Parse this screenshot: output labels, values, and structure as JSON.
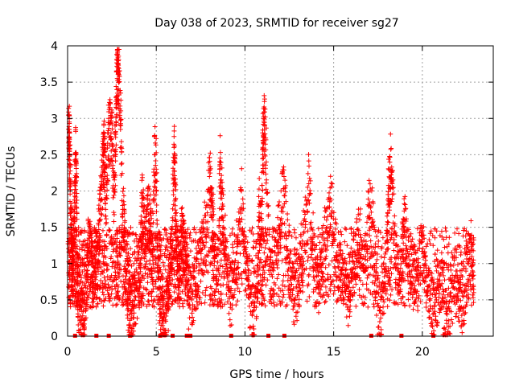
{
  "chart_data": {
    "type": "scatter",
    "title": "Day 038 of 2023, SRMTID for receiver sg27",
    "xlabel": "GPS time / hours",
    "ylabel": "SRMTID / TECUs",
    "xlim": [
      0,
      24
    ],
    "ylim": [
      0,
      4
    ],
    "xticks": [
      0,
      5,
      10,
      15,
      20
    ],
    "yticks": [
      0,
      0.5,
      1,
      1.5,
      2,
      2.5,
      3,
      3.5,
      4
    ],
    "xtick_labels": [
      "0",
      "5",
      "10",
      "15",
      "20"
    ],
    "ytick_labels": [
      "0",
      "0.5",
      "1",
      "1.5",
      "2",
      "2.5",
      "3",
      "3.5",
      "4"
    ],
    "grid": true,
    "marker": "+",
    "color": "#ff0000",
    "data_span_hours": [
      0.0,
      22.9
    ],
    "typical_range": [
      0.3,
      1.5
    ],
    "series": [
      {
        "name": "SRMTID",
        "points": [
          [
            0.05,
            2.85
          ],
          [
            0.1,
            2.8
          ],
          [
            0.1,
            2.55
          ],
          [
            0.15,
            2.1
          ],
          [
            0.2,
            1.45
          ],
          [
            0.25,
            1.2
          ],
          [
            0.3,
            0.9
          ],
          [
            0.35,
            1.3
          ],
          [
            0.4,
            1.75
          ],
          [
            0.45,
            2.5
          ],
          [
            0.5,
            2.2
          ],
          [
            0.55,
            0.7
          ],
          [
            0.6,
            0.55
          ],
          [
            0.7,
            0.4
          ],
          [
            0.8,
            0.25
          ],
          [
            0.9,
            0.15
          ],
          [
            1.0,
            0.6
          ],
          [
            1.1,
            0.9
          ],
          [
            1.2,
            1.35
          ],
          [
            1.3,
            1.1
          ],
          [
            1.4,
            0.85
          ],
          [
            1.5,
            0.7
          ],
          [
            1.6,
            1.0
          ],
          [
            1.7,
            1.2
          ],
          [
            1.8,
            1.6
          ],
          [
            1.9,
            2.05
          ],
          [
            2.0,
            2.4
          ],
          [
            2.05,
            2.6
          ],
          [
            2.1,
            2.2
          ],
          [
            2.2,
            1.9
          ],
          [
            2.3,
            2.8
          ],
          [
            2.4,
            2.95
          ],
          [
            2.5,
            2.65
          ],
          [
            2.6,
            2.0
          ],
          [
            2.7,
            2.5
          ],
          [
            2.75,
            3.3
          ],
          [
            2.8,
            3.55
          ],
          [
            2.85,
            3.7
          ],
          [
            2.9,
            3.6
          ],
          [
            3.0,
            2.9
          ],
          [
            3.1,
            1.8
          ],
          [
            3.2,
            1.4
          ],
          [
            3.3,
            0.9
          ],
          [
            3.4,
            0.6
          ],
          [
            3.5,
            0.3
          ],
          [
            3.6,
            0.25
          ],
          [
            3.7,
            0.4
          ],
          [
            3.8,
            0.55
          ],
          [
            4.0,
            0.8
          ],
          [
            4.1,
            1.0
          ],
          [
            4.2,
            1.9
          ],
          [
            4.3,
            1.5
          ],
          [
            4.4,
            1.2
          ],
          [
            4.5,
            1.75
          ],
          [
            4.6,
            1.6
          ],
          [
            4.7,
            1.4
          ],
          [
            4.8,
            1.1
          ],
          [
            4.9,
            2.5
          ],
          [
            5.0,
            2.3
          ],
          [
            5.1,
            0.9
          ],
          [
            5.2,
            0.5
          ],
          [
            5.3,
            0.3
          ],
          [
            5.4,
            0.1
          ],
          [
            5.5,
            0.05
          ],
          [
            5.6,
            0.4
          ],
          [
            5.7,
            0.6
          ],
          [
            5.8,
            1.0
          ],
          [
            5.9,
            1.25
          ],
          [
            6.0,
            2.6
          ],
          [
            6.05,
            2.1
          ],
          [
            6.1,
            1.6
          ],
          [
            6.2,
            1.1
          ],
          [
            6.3,
            0.9
          ],
          [
            6.4,
            1.3
          ],
          [
            6.5,
            1.5
          ],
          [
            6.6,
            0.9
          ],
          [
            6.7,
            1.1
          ],
          [
            6.8,
            0.6
          ],
          [
            7.0,
            0.5
          ],
          [
            7.2,
            0.7
          ],
          [
            7.4,
            0.9
          ],
          [
            7.6,
            1.2
          ],
          [
            7.8,
            1.4
          ],
          [
            8.0,
            2.2
          ],
          [
            8.1,
            1.8
          ],
          [
            8.2,
            1.6
          ],
          [
            8.3,
            1.1
          ],
          [
            8.5,
            0.9
          ],
          [
            8.6,
            2.4
          ],
          [
            8.7,
            1.9
          ],
          [
            8.8,
            1.5
          ],
          [
            9.0,
            0.8
          ],
          [
            9.2,
            0.6
          ],
          [
            9.4,
            0.9
          ],
          [
            9.6,
            1.3
          ],
          [
            9.8,
            2.0
          ],
          [
            10.0,
            1.1
          ],
          [
            10.2,
            0.7
          ],
          [
            10.4,
            0.3
          ],
          [
            10.5,
            0.1
          ],
          [
            10.7,
            0.6
          ],
          [
            10.8,
            1.7
          ],
          [
            10.9,
            1.4
          ],
          [
            11.0,
            2.5
          ],
          [
            11.05,
            2.75
          ],
          [
            11.1,
            2.9
          ],
          [
            11.2,
            2.4
          ],
          [
            11.4,
            1.0
          ],
          [
            11.6,
            0.9
          ],
          [
            11.8,
            1.3
          ],
          [
            12.0,
            1.6
          ],
          [
            12.2,
            2.2
          ],
          [
            12.4,
            1.2
          ],
          [
            12.6,
            0.8
          ],
          [
            12.8,
            0.5
          ],
          [
            13.0,
            0.8
          ],
          [
            13.2,
            1.1
          ],
          [
            13.4,
            1.5
          ],
          [
            13.6,
            2.1
          ],
          [
            13.8,
            1.3
          ],
          [
            14.0,
            0.9
          ],
          [
            14.2,
            0.7
          ],
          [
            14.4,
            1.0
          ],
          [
            14.6,
            1.6
          ],
          [
            14.8,
            1.9
          ],
          [
            15.0,
            1.4
          ],
          [
            15.2,
            1.1
          ],
          [
            15.4,
            0.9
          ],
          [
            15.6,
            0.7
          ],
          [
            15.8,
            0.5
          ],
          [
            16.0,
            0.8
          ],
          [
            16.2,
            1.1
          ],
          [
            16.4,
            1.4
          ],
          [
            16.6,
            1.2
          ],
          [
            16.8,
            0.9
          ],
          [
            17.0,
            1.8
          ],
          [
            17.2,
            1.5
          ],
          [
            17.4,
            0.6
          ],
          [
            17.6,
            0.2
          ],
          [
            17.8,
            0.5
          ],
          [
            18.0,
            1.3
          ],
          [
            18.1,
            1.9
          ],
          [
            18.2,
            2.3
          ],
          [
            18.3,
            2.1
          ],
          [
            18.5,
            1.0
          ],
          [
            18.7,
            0.7
          ],
          [
            18.9,
            1.4
          ],
          [
            19.0,
            1.6
          ],
          [
            19.2,
            1.1
          ],
          [
            19.4,
            0.9
          ],
          [
            19.6,
            0.6
          ],
          [
            19.8,
            0.9
          ],
          [
            20.0,
            1.3
          ],
          [
            20.2,
            0.8
          ],
          [
            20.4,
            0.5
          ],
          [
            20.6,
            0.3
          ],
          [
            20.8,
            0.5
          ],
          [
            21.0,
            0.7
          ],
          [
            21.2,
            0.4
          ],
          [
            21.4,
            0.3
          ],
          [
            21.6,
            0.6
          ],
          [
            21.8,
            0.8
          ],
          [
            22.0,
            0.5
          ],
          [
            22.2,
            0.4
          ],
          [
            22.4,
            0.7
          ],
          [
            22.6,
            1.0
          ],
          [
            22.8,
            1.2
          ],
          [
            22.9,
            0.6
          ]
        ]
      }
    ],
    "zero_markers": [
      0.4,
      1.6,
      2.3,
      3.5,
      5.2,
      5.9,
      6.7,
      6.9,
      9.2,
      11.3,
      12.2,
      17.1,
      18.8,
      20.6
    ]
  }
}
